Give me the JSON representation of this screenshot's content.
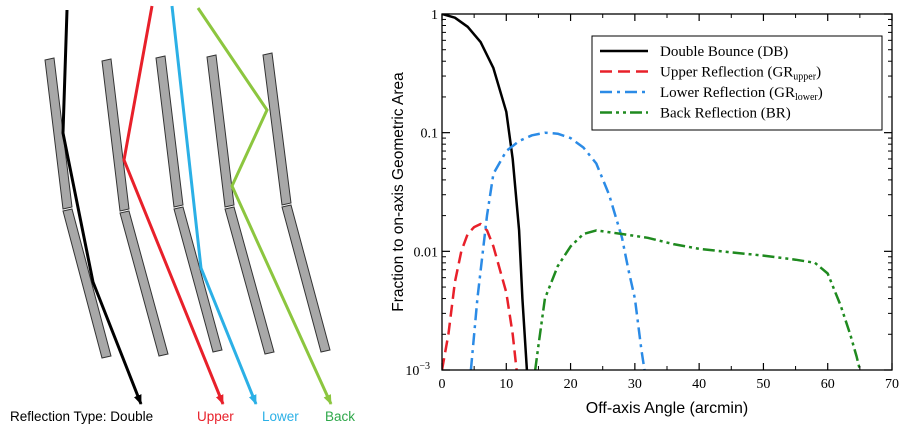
{
  "diagram": {
    "caption_prefix": "Reflection Type: Double",
    "types": [
      {
        "label": "Upper",
        "color": "#e8202a"
      },
      {
        "label": "Lower",
        "color": "#2bb0e6"
      },
      {
        "label": "Back",
        "color": "#2ea84a"
      }
    ],
    "double_color": "#000000",
    "back_ray_color": "#8cc63f",
    "mirror_fill": "#a8a8a8"
  },
  "chart_data": {
    "type": "line",
    "xlabel": "Off-axis Angle (arcmin)",
    "ylabel": "Fraction to on-axis Geometric Area",
    "xlim": [
      0,
      70
    ],
    "ylim": [
      0.001,
      1
    ],
    "yscale": "log",
    "xticks": [
      "0",
      "10",
      "20",
      "30",
      "40",
      "50",
      "60",
      "70"
    ],
    "yticks": [
      {
        "value": 1,
        "label": "1"
      },
      {
        "value": 0.1,
        "label": "0.1"
      },
      {
        "value": 0.01,
        "label": "0.01"
      },
      {
        "value": 0.001,
        "label": "10",
        "sup": "−3"
      }
    ],
    "legend_position": "top-right",
    "series": [
      {
        "name": "Double Bounce (DB)",
        "name_main": "Double Bounce (DB)",
        "name_sub": "",
        "name_end": "",
        "color": "#000000",
        "dash": "",
        "points": [
          [
            0,
            1
          ],
          [
            2,
            0.93
          ],
          [
            4,
            0.78
          ],
          [
            6,
            0.58
          ],
          [
            8,
            0.35
          ],
          [
            10,
            0.15
          ],
          [
            11,
            0.06
          ],
          [
            12,
            0.015
          ],
          [
            12.5,
            0.004
          ],
          [
            13.2,
            0.001
          ]
        ]
      },
      {
        "name": "Upper Reflection (GRupper)",
        "name_main": "Upper Reflection (GR",
        "name_sub": "upper",
        "name_end": ")",
        "color": "#e8202a",
        "dash": "12,6",
        "points": [
          [
            0,
            0.001
          ],
          [
            1,
            0.002
          ],
          [
            2,
            0.0055
          ],
          [
            3,
            0.01
          ],
          [
            4,
            0.014
          ],
          [
            5,
            0.016
          ],
          [
            6,
            0.017
          ],
          [
            7,
            0.015
          ],
          [
            8,
            0.011
          ],
          [
            9,
            0.007
          ],
          [
            10,
            0.0045
          ],
          [
            11,
            0.002
          ],
          [
            11.6,
            0.001
          ]
        ]
      },
      {
        "name": "Lower Reflection (GRlower)",
        "name_main": "Lower Reflection (GR",
        "name_sub": "lower",
        "name_end": ")",
        "color": "#2b8be6",
        "dash": "12,5,3,5",
        "points": [
          [
            4.5,
            0.001
          ],
          [
            5.5,
            0.004
          ],
          [
            7,
            0.02
          ],
          [
            8,
            0.045
          ],
          [
            10,
            0.07
          ],
          [
            12,
            0.085
          ],
          [
            14,
            0.095
          ],
          [
            16,
            0.1
          ],
          [
            18,
            0.098
          ],
          [
            20,
            0.09
          ],
          [
            22,
            0.075
          ],
          [
            24,
            0.055
          ],
          [
            26,
            0.03
          ],
          [
            28,
            0.013
          ],
          [
            29,
            0.007
          ],
          [
            30,
            0.004
          ],
          [
            31,
            0.0015
          ],
          [
            31.5,
            0.001
          ]
        ]
      },
      {
        "name": "Back Reflection (BR)",
        "name_main": "Back Reflection (BR)",
        "name_sub": "",
        "name_end": "",
        "color": "#1f8a1f",
        "dash": "12,4,3,4,3,4",
        "points": [
          [
            14.5,
            0.001
          ],
          [
            15,
            0.0016
          ],
          [
            16,
            0.004
          ],
          [
            18,
            0.0075
          ],
          [
            20,
            0.011
          ],
          [
            22,
            0.014
          ],
          [
            24,
            0.015
          ],
          [
            28,
            0.014
          ],
          [
            32,
            0.013
          ],
          [
            36,
            0.0115
          ],
          [
            40,
            0.0105
          ],
          [
            45,
            0.0098
          ],
          [
            50,
            0.0092
          ],
          [
            55,
            0.0085
          ],
          [
            58,
            0.008
          ],
          [
            60,
            0.0065
          ],
          [
            62,
            0.0035
          ],
          [
            63.5,
            0.002
          ],
          [
            64.5,
            0.0013
          ],
          [
            65,
            0.001
          ]
        ]
      }
    ]
  }
}
